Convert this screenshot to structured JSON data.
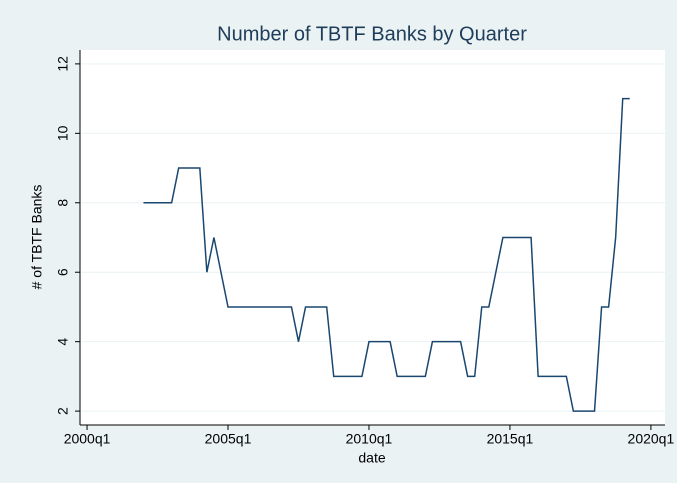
{
  "chart_data": {
    "type": "line",
    "title": "Number of TBTF Banks by Quarter",
    "x_label": "date",
    "y_label": "# of TBTF Banks",
    "x": [
      "2002q1",
      "2002q2",
      "2002q3",
      "2002q4",
      "2003q1",
      "2003q2",
      "2003q3",
      "2003q4",
      "2004q1",
      "2004q2",
      "2004q3",
      "2004q4",
      "2005q1",
      "2005q2",
      "2005q3",
      "2005q4",
      "2006q1",
      "2006q2",
      "2006q3",
      "2006q4",
      "2007q1",
      "2007q2",
      "2007q3",
      "2007q4",
      "2008q1",
      "2008q2",
      "2008q3",
      "2008q4",
      "2009q1",
      "2009q2",
      "2009q3",
      "2009q4",
      "2010q1",
      "2010q2",
      "2010q3",
      "2010q4",
      "2011q1",
      "2011q2",
      "2011q3",
      "2011q4",
      "2012q1",
      "2012q2",
      "2012q3",
      "2012q4",
      "2013q1",
      "2013q2",
      "2013q3",
      "2013q4",
      "2014q1",
      "2014q2",
      "2014q3",
      "2014q4",
      "2015q1",
      "2015q2",
      "2015q3",
      "2015q4",
      "2016q1",
      "2016q2",
      "2016q3",
      "2016q4",
      "2017q1",
      "2017q2",
      "2017q3",
      "2017q4",
      "2018q1",
      "2018q2",
      "2018q3",
      "2018q4",
      "2019q1",
      "2019q2"
    ],
    "values": [
      8,
      8,
      8,
      8,
      8,
      9,
      9,
      9,
      9,
      6,
      7,
      6,
      5,
      5,
      5,
      5,
      5,
      5,
      5,
      5,
      5,
      5,
      4,
      5,
      5,
      5,
      5,
      3,
      3,
      3,
      3,
      3,
      4,
      4,
      4,
      4,
      3,
      3,
      3,
      3,
      3,
      4,
      4,
      4,
      4,
      4,
      3,
      3,
      5,
      5,
      6,
      7,
      7,
      7,
      7,
      7,
      3,
      3,
      3,
      3,
      3,
      2,
      2,
      2,
      2,
      5,
      5,
      7,
      11,
      11
    ],
    "color": "#1a476f",
    "xlim": [
      "1999q4",
      "2020q3"
    ],
    "xticks": [
      "2000q1",
      "2005q1",
      "2010q1",
      "2015q1",
      "2020q1"
    ],
    "ylim": [
      1.6,
      12.4
    ],
    "yticks": [
      2,
      4,
      6,
      8,
      10,
      12
    ],
    "grid": true
  }
}
